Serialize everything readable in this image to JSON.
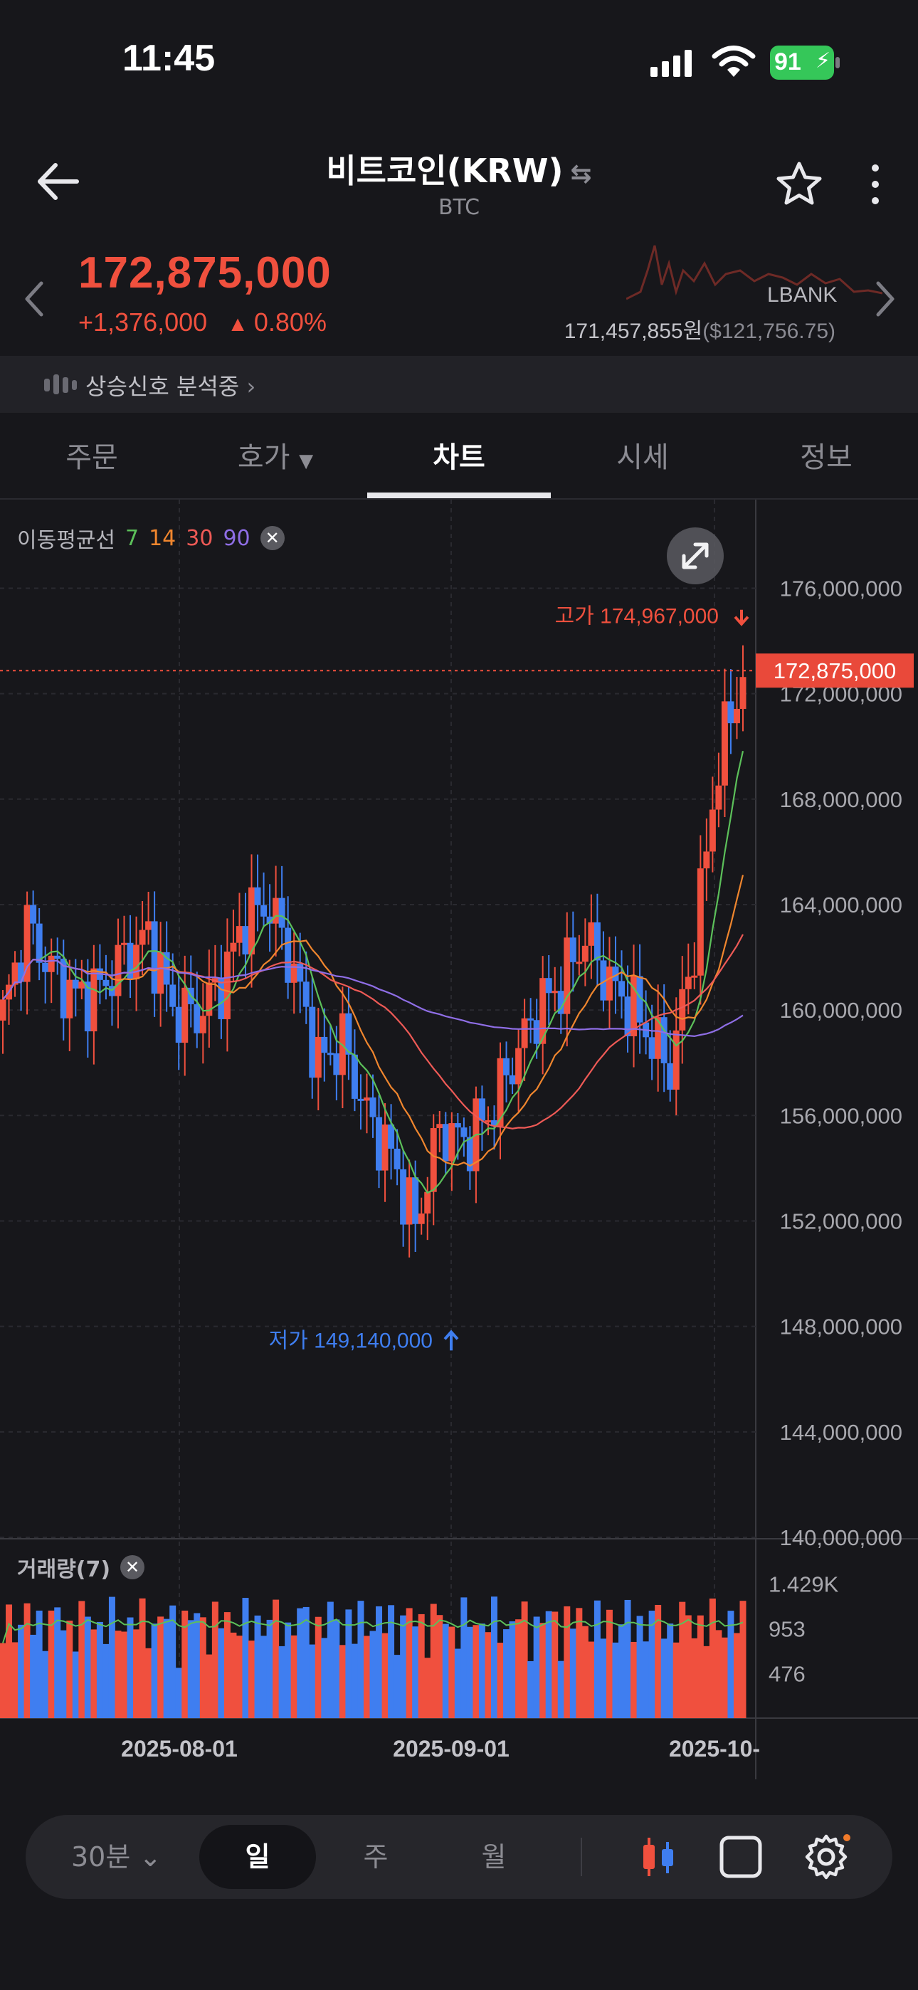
{
  "status_bar": {
    "time": "11:45",
    "battery": "91"
  },
  "header": {
    "title": "비트코인(KRW)",
    "subtitle": "BTC"
  },
  "ticker": {
    "price": "172,875,000",
    "change_amount": "+1,376,000",
    "change_percent": "0.80%",
    "exchange": "LBANK",
    "ref_price_krw": "171,457,855원",
    "ref_price_usd": "($121,756.75)"
  },
  "signal": {
    "text": "상승신호 분석중"
  },
  "tabs": [
    {
      "label": "주문"
    },
    {
      "label": "호가"
    },
    {
      "label": "차트"
    },
    {
      "label": "시세"
    },
    {
      "label": "정보"
    }
  ],
  "ma_legend": {
    "label": "이동평균선",
    "periods": [
      "7",
      "14",
      "30",
      "90"
    ]
  },
  "volume_legend": {
    "label": "거래량(7)"
  },
  "colors": {
    "up": "#f0503e",
    "down": "#3f7ef0",
    "ma7": "#5cc05a",
    "ma14": "#f0862e",
    "ma30": "#ee5a56",
    "ma90": "#8f6ee6"
  },
  "chart_data": {
    "type": "candlestick",
    "y_axis_labels": [
      "176,000,000",
      "172,000,000",
      "168,000,000",
      "164,000,000",
      "160,000,000",
      "156,000,000",
      "152,000,000",
      "148,000,000",
      "144,000,000",
      "140,000,000"
    ],
    "ylim": [
      140000000,
      177200000
    ],
    "current_price_label": "172,875,000",
    "high_marker": "고가 174,967,000",
    "low_marker": "저가 149,140,000",
    "x_axis_labels": [
      "2025-08-01",
      "2025-09-01",
      "2025-10-"
    ],
    "volume_axis_labels": [
      "1.429K",
      "953",
      "476"
    ],
    "volume_ylim": [
      0,
      1700
    ]
  }
}
